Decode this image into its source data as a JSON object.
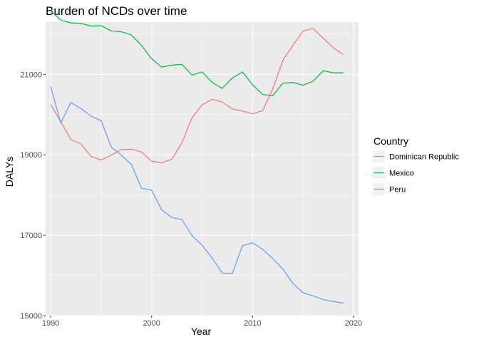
{
  "chart_data": {
    "type": "line",
    "title": "Burden of NCDs over time",
    "xlabel": "Year",
    "ylabel": "DALYs",
    "xlim": [
      1989.5,
      2020.5
    ],
    "ylim": [
      15000,
      22300
    ],
    "x_ticks": [
      1990,
      2000,
      2010,
      2020
    ],
    "y_ticks": [
      15000,
      17000,
      19000,
      21000
    ],
    "x_tick_labels": [
      "1990",
      "2000",
      "2010",
      "2020"
    ],
    "y_tick_labels": [
      "15000",
      "17000",
      "19000",
      "21000"
    ],
    "grid": true,
    "legend": {
      "title": "Country",
      "position": "right"
    },
    "x": [
      1990,
      1991,
      1992,
      1993,
      1994,
      1995,
      1996,
      1997,
      1998,
      1999,
      2000,
      2001,
      2002,
      2003,
      2004,
      2005,
      2006,
      2007,
      2008,
      2009,
      2010,
      2011,
      2012,
      2013,
      2014,
      2015,
      2016,
      2017,
      2018,
      2019
    ],
    "series": [
      {
        "name": "Dominican Republic",
        "color": "#F8766D",
        "values": [
          20250,
          19820,
          19380,
          19270,
          18960,
          18870,
          18990,
          19130,
          19140,
          19070,
          18840,
          18800,
          18890,
          19300,
          19920,
          20240,
          20380,
          20310,
          20140,
          20090,
          20020,
          20100,
          20640,
          21350,
          21720,
          22080,
          22140,
          21900,
          21660,
          21490
        ]
      },
      {
        "name": "Mexico",
        "color": "#00BA38",
        "values": [
          22580,
          22350,
          22280,
          22270,
          22200,
          22210,
          22080,
          22060,
          21980,
          21720,
          21390,
          21180,
          21230,
          21250,
          20980,
          21060,
          20800,
          20650,
          20910,
          21060,
          20740,
          20500,
          20470,
          20780,
          20800,
          20730,
          20830,
          21090,
          21040,
          21040
        ]
      },
      {
        "name": "Peru",
        "color": "#619CFF",
        "values": [
          20700,
          19790,
          20300,
          20150,
          19960,
          19850,
          19190,
          18990,
          18760,
          18170,
          18120,
          17630,
          17440,
          17390,
          16990,
          16750,
          16430,
          16060,
          16050,
          16740,
          16810,
          16650,
          16420,
          16160,
          15800,
          15570,
          15490,
          15400,
          15350,
          15310
        ]
      }
    ]
  }
}
